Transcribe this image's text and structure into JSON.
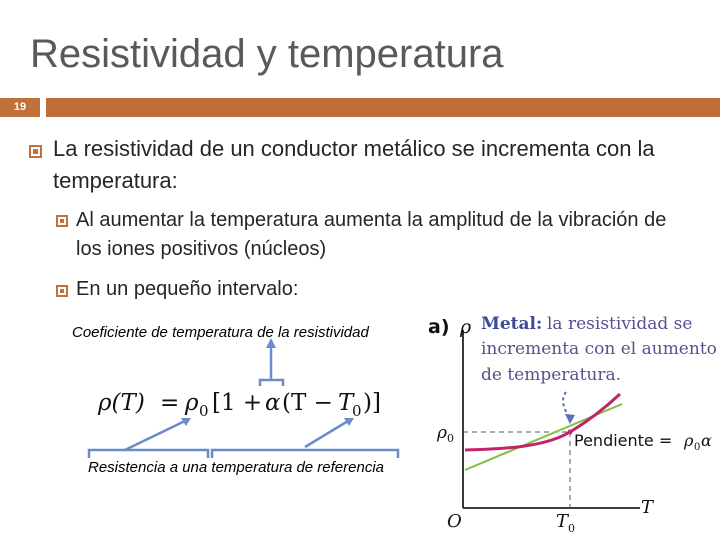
{
  "slide": {
    "title": "Resistividad y temperatura",
    "number": "19"
  },
  "bullets": {
    "main": "La resistividad de un conductor metálico se incrementa con la temperatura:",
    "sub1": "Al aumentar la temperatura aumenta la amplitud de la vibración de los iones positivos (núcleos)",
    "sub2": "En un pequeño intervalo:"
  },
  "annotations": {
    "coef": "Coeficiente de temperatura de la resistividad",
    "ref": "Resistencia a una temperatura de referencia"
  },
  "formula": {
    "lhs": "ρ(T)",
    "eq": "=",
    "rho0": "ρ",
    "sub0": "0",
    "bracket_open": "[1 +",
    "alpha": "α",
    "paren": "(T −",
    "T0": "T",
    "T0sub": "0",
    "close": ")]"
  },
  "figure": {
    "label": "a)",
    "y_axis": "ρ",
    "rho0_label": "ρ",
    "rho0_sub": "0",
    "origin": "O",
    "x_axis": "T",
    "T0_label": "T",
    "T0_sub": "0",
    "callout_line1_bold": "Metal:",
    "callout_line1_rest": "la resistividad se",
    "callout_line2": "incrementa con el aumento",
    "callout_line3": "de temperatura.",
    "slope_label": "Pendiente = ",
    "slope_rho": "ρ",
    "slope_sub": "0",
    "slope_alpha": "α"
  },
  "colors": {
    "accent": "#bf6d37",
    "curve": "#c0246a",
    "tangent": "#7fbf3f",
    "callout_text": "#5a4f8f",
    "metal_label": "#3b4b9a"
  }
}
